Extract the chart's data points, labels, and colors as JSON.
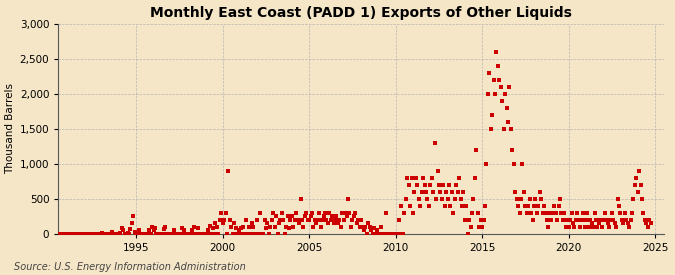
{
  "title": "Monthly East Coast (PADD 1) Exports of Other Liquids",
  "ylabel": "Thousand Barrels",
  "source": "Source: U.S. Energy Information Administration",
  "background_color": "#f5e6c8",
  "dot_color": "#cc0000",
  "ylim": [
    0,
    3000
  ],
  "yticks": [
    0,
    500,
    1000,
    1500,
    2000,
    2500,
    3000
  ],
  "xlim_start": 1990.5,
  "xlim_end": 2025.5,
  "xticks": [
    1995,
    2000,
    2005,
    2010,
    2015,
    2020,
    2025
  ],
  "title_fontsize": 10,
  "label_fontsize": 7.5,
  "tick_fontsize": 7.5,
  "source_fontsize": 7,
  "dot_size": 5,
  "data": [
    [
      1990.0,
      0
    ],
    [
      1990.08,
      0
    ],
    [
      1990.17,
      0
    ],
    [
      1990.25,
      0
    ],
    [
      1990.33,
      0
    ],
    [
      1990.42,
      0
    ],
    [
      1990.5,
      0
    ],
    [
      1990.58,
      0
    ],
    [
      1990.67,
      0
    ],
    [
      1990.75,
      0
    ],
    [
      1990.83,
      0
    ],
    [
      1990.92,
      0
    ],
    [
      1991.0,
      0
    ],
    [
      1991.08,
      0
    ],
    [
      1991.17,
      0
    ],
    [
      1991.25,
      0
    ],
    [
      1991.33,
      0
    ],
    [
      1991.42,
      0
    ],
    [
      1991.5,
      0
    ],
    [
      1991.58,
      0
    ],
    [
      1991.67,
      0
    ],
    [
      1991.75,
      0
    ],
    [
      1991.83,
      0
    ],
    [
      1991.92,
      0
    ],
    [
      1992.0,
      0
    ],
    [
      1992.08,
      0
    ],
    [
      1992.17,
      0
    ],
    [
      1992.25,
      0
    ],
    [
      1992.33,
      0
    ],
    [
      1992.42,
      0
    ],
    [
      1992.5,
      0
    ],
    [
      1992.58,
      0
    ],
    [
      1992.67,
      0
    ],
    [
      1992.75,
      0
    ],
    [
      1992.83,
      0
    ],
    [
      1992.92,
      0
    ],
    [
      1993.0,
      10
    ],
    [
      1993.08,
      5
    ],
    [
      1993.17,
      0
    ],
    [
      1993.25,
      0
    ],
    [
      1993.33,
      0
    ],
    [
      1993.42,
      0
    ],
    [
      1993.5,
      0
    ],
    [
      1993.58,
      30
    ],
    [
      1993.67,
      0
    ],
    [
      1993.75,
      0
    ],
    [
      1993.83,
      0
    ],
    [
      1993.92,
      0
    ],
    [
      1994.0,
      0
    ],
    [
      1994.08,
      20
    ],
    [
      1994.17,
      80
    ],
    [
      1994.25,
      50
    ],
    [
      1994.33,
      0
    ],
    [
      1994.42,
      0
    ],
    [
      1994.5,
      10
    ],
    [
      1994.58,
      0
    ],
    [
      1994.67,
      70
    ],
    [
      1994.75,
      150
    ],
    [
      1994.83,
      250
    ],
    [
      1994.92,
      30
    ],
    [
      1995.0,
      10
    ],
    [
      1995.08,
      0
    ],
    [
      1995.17,
      60
    ],
    [
      1995.25,
      0
    ],
    [
      1995.33,
      0
    ],
    [
      1995.42,
      0
    ],
    [
      1995.5,
      0
    ],
    [
      1995.58,
      0
    ],
    [
      1995.67,
      0
    ],
    [
      1995.75,
      50
    ],
    [
      1995.83,
      0
    ],
    [
      1995.92,
      100
    ],
    [
      1996.0,
      50
    ],
    [
      1996.08,
      80
    ],
    [
      1996.17,
      0
    ],
    [
      1996.25,
      0
    ],
    [
      1996.33,
      0
    ],
    [
      1996.42,
      0
    ],
    [
      1996.5,
      0
    ],
    [
      1996.58,
      70
    ],
    [
      1996.67,
      100
    ],
    [
      1996.75,
      0
    ],
    [
      1996.83,
      0
    ],
    [
      1996.92,
      0
    ],
    [
      1997.0,
      0
    ],
    [
      1997.08,
      0
    ],
    [
      1997.17,
      60
    ],
    [
      1997.25,
      0
    ],
    [
      1997.33,
      0
    ],
    [
      1997.42,
      0
    ],
    [
      1997.5,
      0
    ],
    [
      1997.58,
      0
    ],
    [
      1997.67,
      80
    ],
    [
      1997.75,
      50
    ],
    [
      1997.83,
      0
    ],
    [
      1997.92,
      0
    ],
    [
      1998.0,
      0
    ],
    [
      1998.08,
      0
    ],
    [
      1998.17,
      0
    ],
    [
      1998.25,
      50
    ],
    [
      1998.33,
      100
    ],
    [
      1998.42,
      0
    ],
    [
      1998.5,
      0
    ],
    [
      1998.58,
      80
    ],
    [
      1998.67,
      0
    ],
    [
      1998.75,
      0
    ],
    [
      1998.83,
      0
    ],
    [
      1998.92,
      0
    ],
    [
      1999.0,
      0
    ],
    [
      1999.08,
      0
    ],
    [
      1999.17,
      50
    ],
    [
      1999.25,
      120
    ],
    [
      1999.33,
      0
    ],
    [
      1999.42,
      80
    ],
    [
      1999.5,
      0
    ],
    [
      1999.58,
      150
    ],
    [
      1999.67,
      100
    ],
    [
      1999.75,
      0
    ],
    [
      1999.83,
      200
    ],
    [
      1999.92,
      300
    ],
    [
      2000.0,
      150
    ],
    [
      2000.08,
      200
    ],
    [
      2000.17,
      300
    ],
    [
      2000.25,
      0
    ],
    [
      2000.33,
      900
    ],
    [
      2000.42,
      200
    ],
    [
      2000.5,
      100
    ],
    [
      2000.58,
      0
    ],
    [
      2000.67,
      150
    ],
    [
      2000.75,
      80
    ],
    [
      2000.83,
      0
    ],
    [
      2000.92,
      50
    ],
    [
      2001.0,
      0
    ],
    [
      2001.08,
      80
    ],
    [
      2001.17,
      100
    ],
    [
      2001.25,
      0
    ],
    [
      2001.33,
      200
    ],
    [
      2001.42,
      0
    ],
    [
      2001.5,
      100
    ],
    [
      2001.58,
      0
    ],
    [
      2001.67,
      150
    ],
    [
      2001.75,
      100
    ],
    [
      2001.83,
      0
    ],
    [
      2001.92,
      0
    ],
    [
      2002.0,
      200
    ],
    [
      2002.08,
      0
    ],
    [
      2002.17,
      300
    ],
    [
      2002.25,
      0
    ],
    [
      2002.33,
      0
    ],
    [
      2002.42,
      200
    ],
    [
      2002.5,
      80
    ],
    [
      2002.58,
      150
    ],
    [
      2002.67,
      0
    ],
    [
      2002.75,
      100
    ],
    [
      2002.83,
      200
    ],
    [
      2002.92,
      300
    ],
    [
      2003.0,
      100
    ],
    [
      2003.08,
      250
    ],
    [
      2003.17,
      0
    ],
    [
      2003.25,
      150
    ],
    [
      2003.33,
      200
    ],
    [
      2003.42,
      300
    ],
    [
      2003.5,
      200
    ],
    [
      2003.58,
      0
    ],
    [
      2003.67,
      100
    ],
    [
      2003.75,
      250
    ],
    [
      2003.83,
      80
    ],
    [
      2003.92,
      200
    ],
    [
      2004.0,
      250
    ],
    [
      2004.08,
      100
    ],
    [
      2004.17,
      200
    ],
    [
      2004.25,
      300
    ],
    [
      2004.33,
      200
    ],
    [
      2004.42,
      150
    ],
    [
      2004.5,
      500
    ],
    [
      2004.58,
      200
    ],
    [
      2004.67,
      100
    ],
    [
      2004.75,
      250
    ],
    [
      2004.83,
      300
    ],
    [
      2004.92,
      200
    ],
    [
      2005.0,
      200
    ],
    [
      2005.08,
      250
    ],
    [
      2005.17,
      300
    ],
    [
      2005.25,
      100
    ],
    [
      2005.33,
      200
    ],
    [
      2005.42,
      150
    ],
    [
      2005.5,
      200
    ],
    [
      2005.58,
      300
    ],
    [
      2005.67,
      100
    ],
    [
      2005.75,
      200
    ],
    [
      2005.83,
      250
    ],
    [
      2005.92,
      300
    ],
    [
      2006.0,
      200
    ],
    [
      2006.08,
      150
    ],
    [
      2006.17,
      300
    ],
    [
      2006.25,
      200
    ],
    [
      2006.33,
      250
    ],
    [
      2006.42,
      150
    ],
    [
      2006.5,
      200
    ],
    [
      2006.58,
      250
    ],
    [
      2006.67,
      150
    ],
    [
      2006.75,
      200
    ],
    [
      2006.83,
      100
    ],
    [
      2006.92,
      300
    ],
    [
      2007.0,
      200
    ],
    [
      2007.08,
      300
    ],
    [
      2007.17,
      250
    ],
    [
      2007.25,
      500
    ],
    [
      2007.33,
      300
    ],
    [
      2007.42,
      100
    ],
    [
      2007.5,
      200
    ],
    [
      2007.58,
      250
    ],
    [
      2007.67,
      300
    ],
    [
      2007.75,
      150
    ],
    [
      2007.83,
      200
    ],
    [
      2007.92,
      100
    ],
    [
      2008.0,
      200
    ],
    [
      2008.08,
      100
    ],
    [
      2008.17,
      50
    ],
    [
      2008.25,
      100
    ],
    [
      2008.33,
      0
    ],
    [
      2008.42,
      150
    ],
    [
      2008.5,
      100
    ],
    [
      2008.58,
      50
    ],
    [
      2008.67,
      0
    ],
    [
      2008.75,
      80
    ],
    [
      2008.83,
      0
    ],
    [
      2008.92,
      50
    ],
    [
      2009.0,
      0
    ],
    [
      2009.08,
      0
    ],
    [
      2009.17,
      100
    ],
    [
      2009.25,
      0
    ],
    [
      2009.33,
      0
    ],
    [
      2009.42,
      300
    ],
    [
      2009.5,
      0
    ],
    [
      2009.58,
      0
    ],
    [
      2009.67,
      0
    ],
    [
      2009.75,
      0
    ],
    [
      2009.83,
      0
    ],
    [
      2009.92,
      0
    ],
    [
      2010.0,
      0
    ],
    [
      2010.08,
      0
    ],
    [
      2010.17,
      200
    ],
    [
      2010.25,
      0
    ],
    [
      2010.33,
      400
    ],
    [
      2010.42,
      0
    ],
    [
      2010.5,
      300
    ],
    [
      2010.58,
      500
    ],
    [
      2010.67,
      800
    ],
    [
      2010.75,
      700
    ],
    [
      2010.83,
      400
    ],
    [
      2010.92,
      800
    ],
    [
      2011.0,
      300
    ],
    [
      2011.08,
      600
    ],
    [
      2011.17,
      800
    ],
    [
      2011.25,
      700
    ],
    [
      2011.33,
      500
    ],
    [
      2011.42,
      400
    ],
    [
      2011.5,
      600
    ],
    [
      2011.58,
      800
    ],
    [
      2011.67,
      700
    ],
    [
      2011.75,
      600
    ],
    [
      2011.83,
      500
    ],
    [
      2011.92,
      400
    ],
    [
      2012.0,
      700
    ],
    [
      2012.08,
      800
    ],
    [
      2012.17,
      600
    ],
    [
      2012.25,
      1300
    ],
    [
      2012.33,
      500
    ],
    [
      2012.42,
      900
    ],
    [
      2012.5,
      700
    ],
    [
      2012.58,
      600
    ],
    [
      2012.67,
      500
    ],
    [
      2012.75,
      700
    ],
    [
      2012.83,
      400
    ],
    [
      2012.92,
      600
    ],
    [
      2013.0,
      500
    ],
    [
      2013.08,
      700
    ],
    [
      2013.17,
      400
    ],
    [
      2013.25,
      600
    ],
    [
      2013.33,
      300
    ],
    [
      2013.42,
      500
    ],
    [
      2013.5,
      700
    ],
    [
      2013.58,
      600
    ],
    [
      2013.67,
      800
    ],
    [
      2013.75,
      500
    ],
    [
      2013.83,
      400
    ],
    [
      2013.92,
      600
    ],
    [
      2014.0,
      200
    ],
    [
      2014.08,
      400
    ],
    [
      2014.17,
      0
    ],
    [
      2014.25,
      200
    ],
    [
      2014.33,
      100
    ],
    [
      2014.42,
      300
    ],
    [
      2014.5,
      500
    ],
    [
      2014.58,
      800
    ],
    [
      2014.67,
      1200
    ],
    [
      2014.75,
      300
    ],
    [
      2014.83,
      100
    ],
    [
      2014.92,
      200
    ],
    [
      2015.0,
      100
    ],
    [
      2015.08,
      200
    ],
    [
      2015.17,
      400
    ],
    [
      2015.25,
      1000
    ],
    [
      2015.33,
      2000
    ],
    [
      2015.42,
      2300
    ],
    [
      2015.5,
      1500
    ],
    [
      2015.58,
      1700
    ],
    [
      2015.67,
      2200
    ],
    [
      2015.75,
      2000
    ],
    [
      2015.83,
      2600
    ],
    [
      2015.92,
      2400
    ],
    [
      2016.0,
      2200
    ],
    [
      2016.08,
      2100
    ],
    [
      2016.17,
      1900
    ],
    [
      2016.25,
      1500
    ],
    [
      2016.33,
      2000
    ],
    [
      2016.42,
      1800
    ],
    [
      2016.5,
      1600
    ],
    [
      2016.58,
      2100
    ],
    [
      2016.67,
      1500
    ],
    [
      2016.75,
      1200
    ],
    [
      2016.83,
      1000
    ],
    [
      2016.92,
      600
    ],
    [
      2017.0,
      500
    ],
    [
      2017.08,
      400
    ],
    [
      2017.17,
      300
    ],
    [
      2017.25,
      500
    ],
    [
      2017.33,
      1000
    ],
    [
      2017.42,
      600
    ],
    [
      2017.5,
      400
    ],
    [
      2017.58,
      300
    ],
    [
      2017.67,
      400
    ],
    [
      2017.75,
      500
    ],
    [
      2017.83,
      300
    ],
    [
      2017.92,
      200
    ],
    [
      2018.0,
      400
    ],
    [
      2018.08,
      500
    ],
    [
      2018.17,
      300
    ],
    [
      2018.25,
      400
    ],
    [
      2018.33,
      600
    ],
    [
      2018.42,
      500
    ],
    [
      2018.5,
      300
    ],
    [
      2018.58,
      400
    ],
    [
      2018.67,
      300
    ],
    [
      2018.75,
      200
    ],
    [
      2018.83,
      100
    ],
    [
      2018.92,
      300
    ],
    [
      2019.0,
      200
    ],
    [
      2019.08,
      300
    ],
    [
      2019.17,
      400
    ],
    [
      2019.25,
      300
    ],
    [
      2019.33,
      200
    ],
    [
      2019.42,
      400
    ],
    [
      2019.5,
      500
    ],
    [
      2019.58,
      300
    ],
    [
      2019.67,
      200
    ],
    [
      2019.75,
      300
    ],
    [
      2019.83,
      100
    ],
    [
      2019.92,
      200
    ],
    [
      2020.0,
      100
    ],
    [
      2020.08,
      200
    ],
    [
      2020.17,
      300
    ],
    [
      2020.25,
      150
    ],
    [
      2020.33,
      100
    ],
    [
      2020.42,
      200
    ],
    [
      2020.5,
      300
    ],
    [
      2020.58,
      200
    ],
    [
      2020.67,
      100
    ],
    [
      2020.75,
      200
    ],
    [
      2020.83,
      300
    ],
    [
      2020.92,
      100
    ],
    [
      2021.0,
      200
    ],
    [
      2021.08,
      300
    ],
    [
      2021.17,
      100
    ],
    [
      2021.25,
      200
    ],
    [
      2021.33,
      150
    ],
    [
      2021.42,
      100
    ],
    [
      2021.5,
      300
    ],
    [
      2021.58,
      200
    ],
    [
      2021.67,
      100
    ],
    [
      2021.75,
      150
    ],
    [
      2021.83,
      200
    ],
    [
      2021.92,
      100
    ],
    [
      2022.0,
      200
    ],
    [
      2022.08,
      300
    ],
    [
      2022.17,
      200
    ],
    [
      2022.25,
      150
    ],
    [
      2022.33,
      100
    ],
    [
      2022.42,
      200
    ],
    [
      2022.5,
      300
    ],
    [
      2022.58,
      200
    ],
    [
      2022.67,
      150
    ],
    [
      2022.75,
      100
    ],
    [
      2022.83,
      500
    ],
    [
      2022.92,
      400
    ],
    [
      2023.0,
      300
    ],
    [
      2023.08,
      200
    ],
    [
      2023.17,
      150
    ],
    [
      2023.25,
      300
    ],
    [
      2023.33,
      200
    ],
    [
      2023.42,
      150
    ],
    [
      2023.5,
      100
    ],
    [
      2023.58,
      200
    ],
    [
      2023.67,
      300
    ],
    [
      2023.75,
      500
    ],
    [
      2023.83,
      700
    ],
    [
      2023.92,
      800
    ],
    [
      2024.0,
      600
    ],
    [
      2024.08,
      900
    ],
    [
      2024.17,
      700
    ],
    [
      2024.25,
      500
    ],
    [
      2024.33,
      300
    ],
    [
      2024.42,
      200
    ],
    [
      2024.5,
      150
    ],
    [
      2024.58,
      100
    ],
    [
      2024.67,
      200
    ],
    [
      2024.75,
      150
    ]
  ]
}
